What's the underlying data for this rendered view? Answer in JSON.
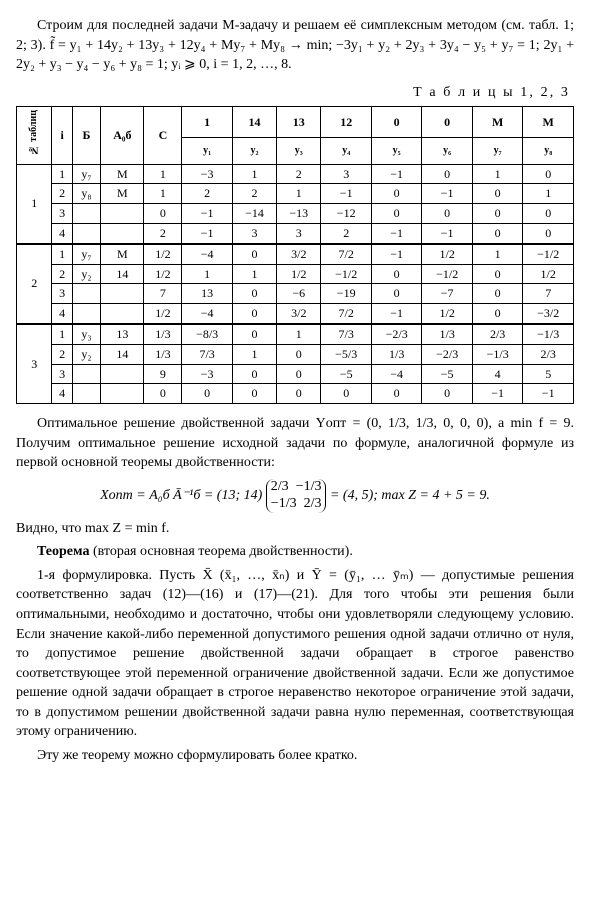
{
  "para1": "Строим для последней задачи M-задачу и решаем её симплексным методом (см. табл. 1; 2; 3). f̃ = y₁ + 14y₂ + 13y₃ + 12y₄ + My₇ + My₈ → min; −3y₁ + y₂ + 2y₃ + 3y₄ − y₅ + y₇ = 1;   2y₁ + 2y₂ + y₃ − y₄ − y₆ + y₈ = 1; yᵢ ⩾ 0,  i = 1, 2, …, 8.",
  "tables_caption": "Т а б л и ц ы  1, 2, 3",
  "headers": {
    "col1": "№ таблиц",
    "col2": "i",
    "col3": "Б",
    "col4": "A₀б",
    "col5": "C",
    "coef_row": [
      "1",
      "14",
      "13",
      "12",
      "0",
      "0",
      "M",
      "M"
    ],
    "var_row": [
      "y₁",
      "y₂",
      "y₃",
      "y₄",
      "y₅",
      "y₆",
      "y₇",
      "y₈"
    ]
  },
  "blocks": [
    {
      "no": "1",
      "rows": [
        [
          "1",
          "y₇",
          "M",
          "1",
          "−3",
          "1",
          "2",
          "3",
          "−1",
          "0",
          "1",
          "0"
        ],
        [
          "2",
          "y₈",
          "M",
          "1",
          "2",
          "2",
          "1",
          "−1",
          "0",
          "−1",
          "0",
          "1"
        ],
        [
          "3",
          "",
          "",
          "0",
          "−1",
          "−14",
          "−13",
          "−12",
          "0",
          "0",
          "0",
          "0"
        ],
        [
          "4",
          "",
          "",
          "2",
          "−1",
          "3",
          "3",
          "2",
          "−1",
          "−1",
          "0",
          "0"
        ]
      ]
    },
    {
      "no": "2",
      "rows": [
        [
          "1",
          "y₇",
          "M",
          "1/2",
          "−4",
          "0",
          "3/2",
          "7/2",
          "−1",
          "1/2",
          "1",
          "−1/2"
        ],
        [
          "2",
          "y₂",
          "14",
          "1/2",
          "1",
          "1",
          "1/2",
          "−1/2",
          "0",
          "−1/2",
          "0",
          "1/2"
        ],
        [
          "3",
          "",
          "",
          "7",
          "13",
          "0",
          "−6",
          "−19",
          "0",
          "−7",
          "0",
          "7"
        ],
        [
          "4",
          "",
          "",
          "1/2",
          "−4",
          "0",
          "3/2",
          "7/2",
          "−1",
          "1/2",
          "0",
          "−3/2"
        ]
      ]
    },
    {
      "no": "3",
      "rows": [
        [
          "1",
          "y₃",
          "13",
          "1/3",
          "−8/3",
          "0",
          "1",
          "7/3",
          "−2/3",
          "1/3",
          "2/3",
          "−1/3"
        ],
        [
          "2",
          "y₂",
          "14",
          "1/3",
          "7/3",
          "1",
          "0",
          "−5/3",
          "1/3",
          "−2/3",
          "−1/3",
          "2/3"
        ],
        [
          "3",
          "",
          "",
          "9",
          "−3",
          "0",
          "0",
          "−5",
          "−4",
          "−5",
          "4",
          "5"
        ],
        [
          "4",
          "",
          "",
          "0",
          "0",
          "0",
          "0",
          "0",
          "0",
          "0",
          "−1",
          "−1"
        ]
      ]
    }
  ],
  "para2": "Оптимальное решение двойственной задачи Yопт = (0, 1/3, 1/3, 0, 0, 0), а min f = 9. Получим оптимальное решение исходной задачи по формуле, аналогичной формуле из первой основной теоремы двойственности:",
  "eq": {
    "lhs": "Xопт = A₀б Ā⁻¹б = (13; 14)",
    "m11": "2/3",
    "m12": "−1/3",
    "m21": "−1/3",
    "m22": "2/3",
    "rhs": "= (4, 5);  max Z = 4 + 5 = 9."
  },
  "para3": "Видно, что max Z = min f.",
  "para4_strong": "Теорема",
  "para4_rest": " (вторая основная теорема двойственности).",
  "para5": "1-я формулировка. Пусть X̄ (x̄₁, …, x̄ₙ) и Ȳ = (ȳ₁, … ȳₘ) — допустимые решения соответственно задач (12)—(16) и (17)—(21). Для того чтобы эти решения были оптимальными, необходимо и достаточно, чтобы они удовлетворяли следующему условию. Если значение какой-либо переменной допустимого решения одной задачи отлично от нуля, то допустимое решение двойственной задачи обращает в строгое равенство соответствующее этой переменной ограничение двойственной задачи. Если же допустимое решение одной задачи обращает в строгое неравенство некоторое ограничение этой задачи, то в допустимом решении двойственной задачи равна нулю переменная, соответствующая этому ограничению.",
  "para6": "Эту же теорему можно сформулировать более кратко."
}
